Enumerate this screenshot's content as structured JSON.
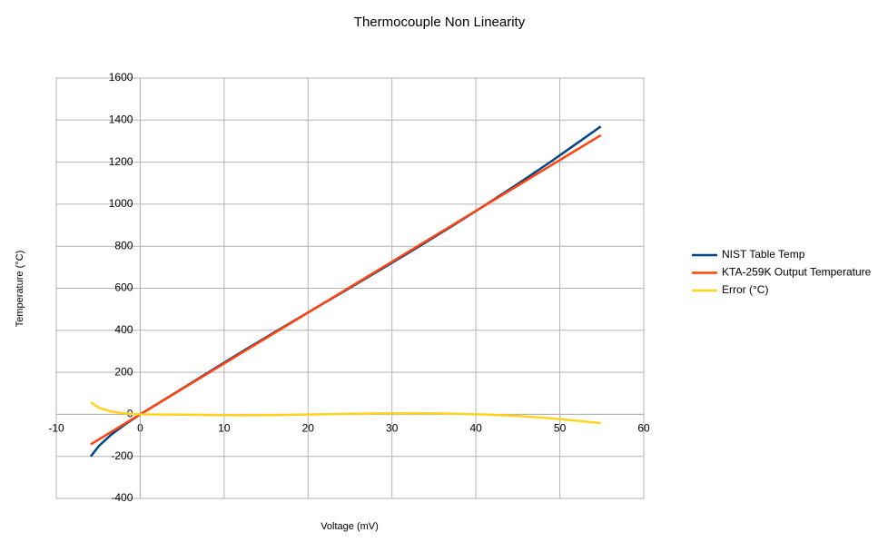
{
  "chart_data": {
    "type": "line",
    "title": "Thermocouple Non Linearity",
    "x_label": "Voltage (mV)",
    "y_label": "Temperature (°C)",
    "x": [
      -5.891,
      -4.913,
      -3.554,
      -1.889,
      0,
      4.096,
      8.138,
      12.209,
      16.397,
      20.644,
      24.905,
      29.129,
      33.275,
      37.326,
      41.276,
      45.119,
      48.838,
      52.41,
      54.886
    ],
    "series": [
      {
        "name": "NIST Table Temp",
        "color": "#004586",
        "values": [
          -200,
          -150,
          -100,
          -50,
          0,
          100,
          200,
          300,
          400,
          500,
          600,
          700,
          800,
          900,
          1000,
          1100,
          1200,
          1300,
          1370
        ]
      },
      {
        "name": "KTA-259K Output Temperature",
        "color": "#ff420e",
        "values": [
          -142.6,
          -118.9,
          -86,
          -45.7,
          0,
          99.1,
          196.9,
          295.5,
          396.8,
          499.6,
          602.7,
          704.9,
          805.3,
          903.3,
          998.9,
          1091.9,
          1181.9,
          1268.3,
          1328.2
        ]
      },
      {
        "name": "Error (°C)",
        "color": "#ffd320",
        "values": [
          57.4,
          31.1,
          14,
          4.3,
          0,
          -0.9,
          -3.1,
          -4.5,
          -3.2,
          -0.4,
          2.7,
          4.9,
          5.3,
          3.3,
          -1.1,
          -8.1,
          -18.1,
          -31.7,
          -41.8
        ]
      }
    ],
    "xlim": [
      -10,
      60
    ],
    "xticks": [
      -10,
      0,
      10,
      20,
      30,
      40,
      50,
      60
    ],
    "ylim": [
      -400,
      1600
    ],
    "yticks": [
      -400,
      -200,
      0,
      200,
      400,
      600,
      800,
      1000,
      1200,
      1400,
      1600
    ],
    "grid": true,
    "legend": "right"
  }
}
